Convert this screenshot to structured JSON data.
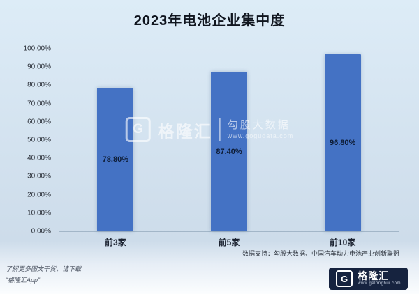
{
  "title": "2023年电池企业集中度",
  "chart_data": {
    "type": "bar",
    "title": "2023年电池企业集中度",
    "categories": [
      "前3家",
      "前5家",
      "前10家"
    ],
    "values": [
      78.8,
      87.4,
      96.8
    ],
    "value_labels": [
      "78.80%",
      "87.40%",
      "96.80%"
    ],
    "ylim": [
      0,
      100
    ],
    "ytick_labels": [
      "0.00%",
      "10.00%",
      "20.00%",
      "30.00%",
      "40.00%",
      "50.00%",
      "60.00%",
      "70.00%",
      "80.00%",
      "90.00%",
      "100.00%"
    ],
    "bar_color": "#4472c4",
    "grid": false,
    "legend": "none"
  },
  "watermark": {
    "logo_letter": "G",
    "brand": "格隆汇",
    "text": "勾股大数据",
    "url": "www.gogudata.com"
  },
  "footer": {
    "data_support": "数据支持：勾股大数据、中国汽车动力电池产业创新联盟",
    "promo_line1": "了解更多图文干货，请下载",
    "promo_line2": "“格隆汇App”",
    "logo_letter": "G",
    "logo_brand": "格隆汇",
    "logo_url": "www.gelonghui.com"
  }
}
